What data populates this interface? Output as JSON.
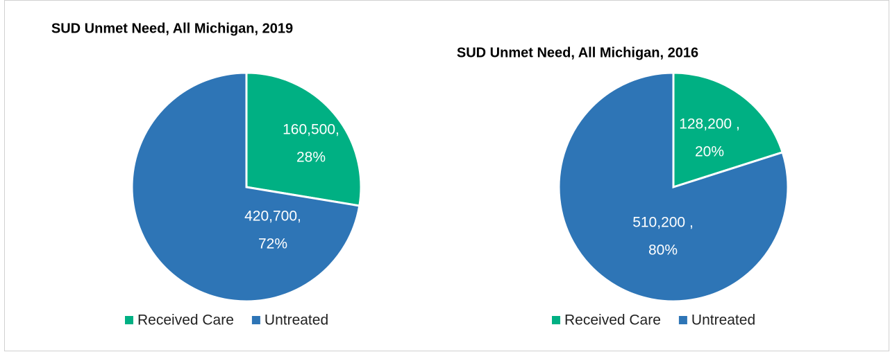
{
  "chart_data": [
    {
      "type": "pie",
      "title": "SUD Unmet Need, All Michigan, 2019",
      "categories": [
        "Received Care",
        "Untreated"
      ],
      "values": [
        160500,
        420700
      ],
      "value_labels": [
        "160,500,",
        "420,700,"
      ],
      "percents": [
        28,
        72
      ],
      "percent_labels": [
        "28%",
        "72%"
      ],
      "colors": [
        "#00b083",
        "#2e75b6"
      ],
      "legend": "bottom"
    },
    {
      "type": "pie",
      "title": "SUD Unmet Need, All Michigan, 2016",
      "categories": [
        "Received Care",
        "Untreated"
      ],
      "values": [
        128200,
        510200
      ],
      "value_labels": [
        "128,200 ,",
        "510,200 ,"
      ],
      "percents": [
        20,
        80
      ],
      "percent_labels": [
        "20%",
        "80%"
      ],
      "colors": [
        "#00b083",
        "#2e75b6"
      ],
      "legend": "bottom"
    }
  ]
}
